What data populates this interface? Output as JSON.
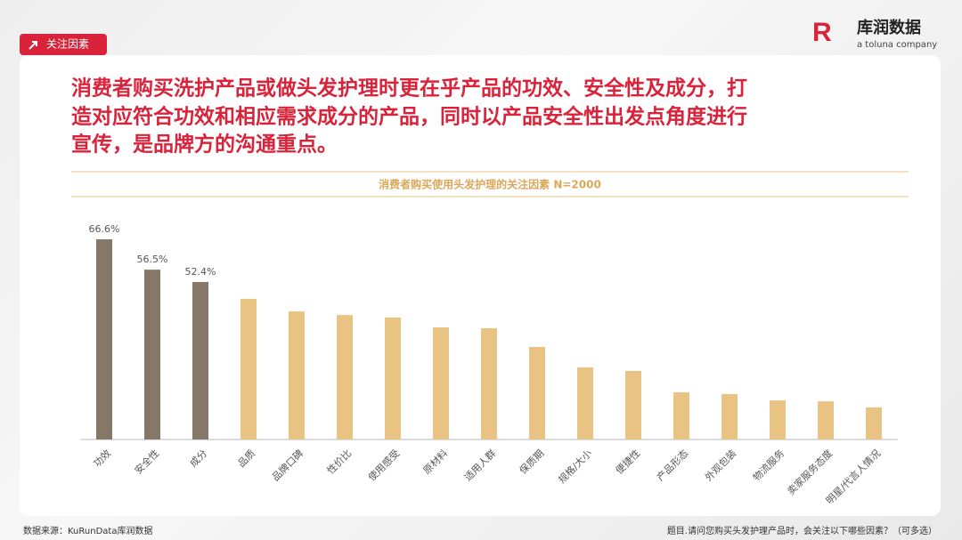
{
  "header": {
    "tag": "关注因素",
    "brand": "库润数据",
    "brand_sub": "a toluna company"
  },
  "headline": [
    "消费者购买洗护产品或做头发护理时更在乎产品的功效、安全性及成分，打",
    "造对应符合功效和相应需求成分的产品，同时以产品安全性出发点角度进行",
    "宣传，是品牌方的沟通重点。"
  ],
  "chart_data": {
    "type": "bar",
    "title": "消费者购买使用头发护理的关注因素 N=2000",
    "categories": [
      "功效",
      "安全性",
      "成分",
      "品质",
      "品牌口碑",
      "性价比",
      "使用感受",
      "原材料",
      "适用人群",
      "保质期",
      "规格/大小",
      "便捷性",
      "产品形态",
      "外观包装",
      "物流服务",
      "卖家服务态度",
      "明星/代言人情况"
    ],
    "values": [
      66.6,
      56.5,
      52.4,
      46.8,
      42.6,
      41.4,
      40.6,
      37.3,
      37.0,
      30.8,
      24.0,
      22.8,
      15.7,
      15.1,
      13.0,
      12.7,
      10.7
    ],
    "value_labels": [
      "66.6%",
      "56.5%",
      "52.4%",
      null,
      null,
      null,
      null,
      null,
      null,
      null,
      null,
      null,
      null,
      null,
      null,
      null,
      null
    ],
    "colors": [
      "#857868",
      "#857868",
      "#857868",
      "#e8c383",
      "#e8c383",
      "#e8c383",
      "#e8c383",
      "#e8c383",
      "#e8c383",
      "#e8c383",
      "#e8c383",
      "#e8c383",
      "#e8c383",
      "#e8c383",
      "#e8c383",
      "#e8c383",
      "#e8c383"
    ]
  },
  "footer": {
    "source": "数据来源：KuRunData库润数据",
    "note": "题目.请问您购买头发护理产品时，会关注以下哪些因素？（可多选）"
  }
}
